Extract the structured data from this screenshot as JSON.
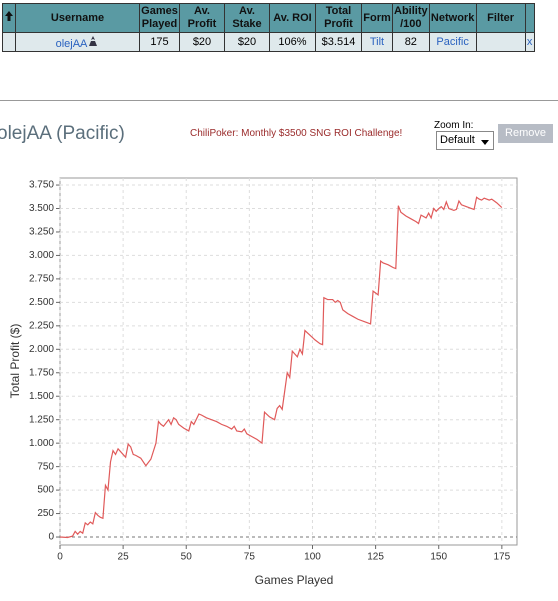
{
  "table": {
    "headers": [
      "Username",
      "Games Played",
      "Av. Profit",
      "Av. Stake",
      "Av. ROI",
      "Total Profit",
      "Form",
      "Ability /100",
      "Network",
      "Filter"
    ],
    "rows": [
      [
        "olejAA",
        "175",
        "$20",
        "$20",
        "106%",
        "$3.514",
        "Tilt",
        "82",
        "Pacific",
        "x"
      ]
    ]
  },
  "player_title": "olejAA (Pacific)",
  "promo": "ChiliPoker: Monthly $3500 SNG ROI Challenge!",
  "zoom_label": "Zoom In:",
  "zoom_option": "Default",
  "remove_button": "Remove",
  "chart_data": {
    "type": "line",
    "xlabel": "Games Played",
    "ylabel": "Total Profit ($)",
    "color": "#e05a5a",
    "grid": true,
    "xlim": [
      0,
      181
    ],
    "ylim": [
      -85,
      3825
    ],
    "xticks": [
      0,
      25,
      50,
      75,
      100,
      125,
      150,
      175
    ],
    "yticks": [
      0,
      250,
      500,
      750,
      {
        "value": 1000,
        "label": "1.000"
      },
      {
        "value": 1250,
        "label": "1.250"
      },
      {
        "value": 1500,
        "label": "1.500"
      },
      {
        "value": 1750,
        "label": "1.750"
      },
      {
        "value": 2000,
        "label": "2.000"
      },
      {
        "value": 2250,
        "label": "2.250"
      },
      {
        "value": 2500,
        "label": "2.500"
      },
      {
        "value": 2750,
        "label": "2.750"
      },
      {
        "value": 3000,
        "label": "3.000"
      },
      {
        "value": 3250,
        "label": "3.250"
      },
      {
        "value": 3500,
        "label": "3.500"
      },
      {
        "value": 3750,
        "label": "3.750"
      }
    ],
    "x": [
      0,
      3,
      5,
      6,
      7,
      8,
      9,
      10,
      11,
      12,
      13,
      14,
      15,
      16,
      17,
      18,
      19,
      20,
      21,
      22,
      23,
      25,
      26,
      27,
      28,
      29,
      30,
      32,
      34,
      36,
      38,
      39,
      40,
      41,
      43,
      44,
      45,
      46,
      47,
      49,
      51,
      52,
      53,
      55,
      56,
      58,
      60,
      62,
      64,
      66,
      68,
      69,
      70,
      72,
      73,
      74,
      76,
      78,
      80,
      81,
      83,
      85,
      86,
      87,
      88,
      90,
      91,
      92,
      93,
      94,
      95,
      96,
      97,
      99,
      101,
      103,
      104,
      104.5,
      106,
      108,
      109,
      110,
      111,
      112,
      114,
      116,
      118,
      121,
      123,
      124,
      125,
      126,
      127,
      128,
      130,
      132,
      133,
      134,
      135,
      137,
      139,
      141,
      142,
      143,
      145,
      146,
      147,
      148,
      149,
      150,
      151,
      152,
      153,
      154,
      156,
      157,
      158,
      159,
      161,
      163,
      164,
      165,
      166,
      167,
      168,
      170,
      171,
      173,
      175
    ],
    "values": [
      0,
      -5,
      10,
      60,
      30,
      60,
      40,
      150,
      130,
      160,
      140,
      260,
      230,
      210,
      200,
      550,
      500,
      800,
      920,
      880,
      940,
      880,
      850,
      990,
      960,
      880,
      870,
      840,
      760,
      830,
      1000,
      1230,
      1200,
      1180,
      1250,
      1200,
      1270,
      1250,
      1200,
      1160,
      1130,
      1230,
      1200,
      1310,
      1300,
      1270,
      1250,
      1230,
      1200,
      1180,
      1150,
      1180,
      1130,
      1120,
      1150,
      1100,
      1070,
      1040,
      1000,
      1330,
      1280,
      1250,
      1370,
      1400,
      1360,
      1750,
      1700,
      1980,
      1950,
      1920,
      2000,
      1950,
      2200,
      2150,
      2100,
      2060,
      2050,
      2550,
      2530,
      2530,
      2500,
      2520,
      2500,
      2420,
      2380,
      2350,
      2320,
      2290,
      2270,
      2620,
      2600,
      2580,
      2940,
      2920,
      2900,
      2870,
      2860,
      3530,
      3460,
      3420,
      3390,
      3360,
      3340,
      3430,
      3400,
      3450,
      3400,
      3500,
      3470,
      3500,
      3520,
      3490,
      3570,
      3500,
      3480,
      3490,
      3580,
      3540,
      3520,
      3500,
      3490,
      3620,
      3600,
      3590,
      3610,
      3590,
      3600,
      3560,
      3510
    ]
  }
}
